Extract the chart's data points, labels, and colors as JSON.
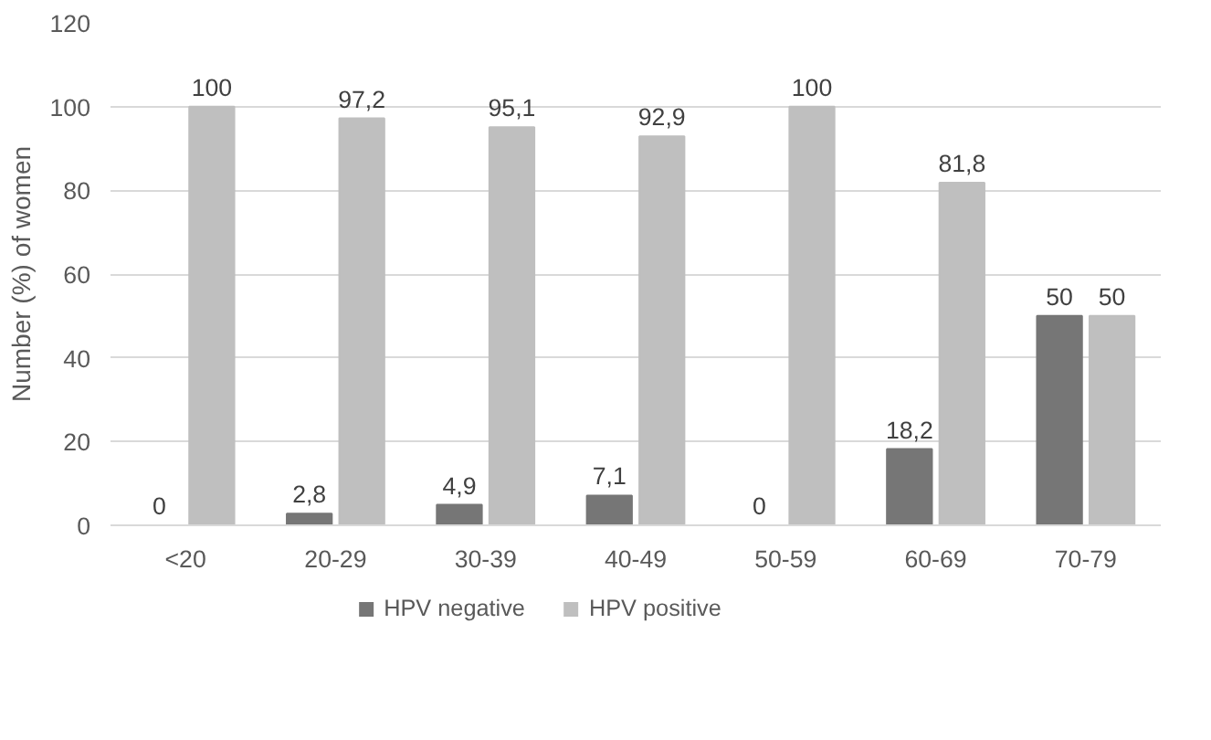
{
  "chart_data": {
    "type": "bar",
    "ylabel": "Number (%) of women",
    "categories": [
      "<20",
      "20-29",
      "30-39",
      "40-49",
      "50-59",
      "60-69",
      "70-79"
    ],
    "series": [
      {
        "name": "HPV negative",
        "color": "#767676",
        "values": [
          0,
          2.8,
          4.9,
          7.1,
          0,
          18.2,
          50
        ],
        "value_labels": [
          "0",
          "2,8",
          "4,9",
          "7,1",
          "0",
          "18,2",
          "50"
        ]
      },
      {
        "name": "HPV positive",
        "color": "#bfbfbf",
        "values": [
          100,
          97.2,
          95.1,
          92.9,
          100,
          81.8,
          50
        ],
        "value_labels": [
          "100",
          "97,2",
          "95,1",
          "92,9",
          "100",
          "81,8",
          "50"
        ]
      }
    ],
    "ylim": [
      0,
      120
    ],
    "yticks": [
      0,
      20,
      40,
      60,
      80,
      100,
      120
    ],
    "grid": "y",
    "legend": "bottom"
  }
}
